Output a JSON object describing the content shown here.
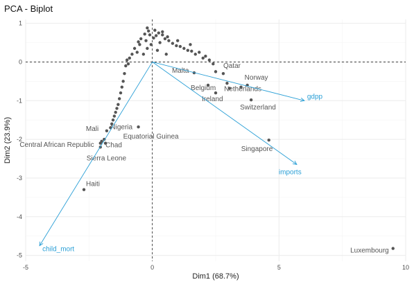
{
  "chart_data": {
    "type": "scatter",
    "title": "PCA - Biplot",
    "xlabel": "Dim1 (68.7%)",
    "ylabel": "Dim2 (23.9%)",
    "xlim": [
      -5,
      10
    ],
    "ylim": [
      -5,
      1
    ],
    "grid": true,
    "x_ticks": [
      {
        "value": -5,
        "label": "-5"
      },
      {
        "value": 0,
        "label": "0"
      },
      {
        "value": 5,
        "label": "5"
      },
      {
        "value": 10,
        "label": "10"
      }
    ],
    "y_ticks": [
      {
        "value": 1,
        "label": "1"
      },
      {
        "value": 0,
        "label": "0"
      },
      {
        "value": -1,
        "label": "-1"
      },
      {
        "value": -2,
        "label": "-2"
      },
      {
        "value": -3,
        "label": "-3"
      },
      {
        "value": -4,
        "label": "-4"
      },
      {
        "value": -5,
        "label": "-5"
      }
    ],
    "labeled_points": [
      {
        "label": "Qatar",
        "x": 2.8,
        "y": -0.3
      },
      {
        "label": "Norway",
        "x": 3.75,
        "y": -0.6
      },
      {
        "label": "Malta",
        "x": 1.65,
        "y": -0.28
      },
      {
        "label": "Netherlands",
        "x": 3.05,
        "y": -0.68
      },
      {
        "label": "Belgium",
        "x": 2.2,
        "y": -0.6
      },
      {
        "label": "Ireland",
        "x": 2.5,
        "y": -0.8
      },
      {
        "label": "Switzerland",
        "x": 3.9,
        "y": -0.98
      },
      {
        "label": "Nigeria",
        "x": -1.65,
        "y": -1.7
      },
      {
        "label": "Equatorial Guinea",
        "x": -0.55,
        "y": -1.68
      },
      {
        "label": "Mali",
        "x": -1.8,
        "y": -1.78
      },
      {
        "label": "Central African Republic",
        "x": -2.0,
        "y": -2.05
      },
      {
        "label": "Chad",
        "x": -1.85,
        "y": -2.1
      },
      {
        "label": "Sierra Leone",
        "x": -2.05,
        "y": -2.2
      },
      {
        "label": "Singapore",
        "x": 4.6,
        "y": -2.02
      },
      {
        "label": "Haiti",
        "x": -2.7,
        "y": -3.3
      },
      {
        "label": "Luxembourg",
        "x": 9.5,
        "y": -4.82
      }
    ],
    "points": [
      [
        -0.2,
        0.88
      ],
      [
        -0.15,
        0.8
      ],
      [
        -0.3,
        0.72
      ],
      [
        -0.1,
        0.7
      ],
      [
        0.1,
        0.82
      ],
      [
        0.25,
        0.75
      ],
      [
        0.4,
        0.7
      ],
      [
        0.05,
        0.62
      ],
      [
        -0.45,
        0.6
      ],
      [
        -0.25,
        0.55
      ],
      [
        0.5,
        0.6
      ],
      [
        0.65,
        0.55
      ],
      [
        0.3,
        0.5
      ],
      [
        -0.5,
        0.45
      ],
      [
        -0.7,
        0.35
      ],
      [
        0.8,
        0.48
      ],
      [
        0.95,
        0.42
      ],
      [
        -0.05,
        0.45
      ],
      [
        1.1,
        0.4
      ],
      [
        1.25,
        0.35
      ],
      [
        -0.6,
        0.25
      ],
      [
        -0.8,
        0.2
      ],
      [
        1.4,
        0.3
      ],
      [
        1.55,
        0.28
      ],
      [
        1.7,
        0.2
      ],
      [
        1.85,
        0.25
      ],
      [
        2.0,
        0.1
      ],
      [
        -0.9,
        0.1
      ],
      [
        -1.0,
        0.05
      ],
      [
        2.1,
        0.15
      ],
      [
        2.25,
        0.05
      ],
      [
        2.4,
        -0.05
      ],
      [
        -0.95,
        -0.05
      ],
      [
        -1.05,
        -0.1
      ],
      [
        -0.2,
        0.35
      ],
      [
        0.2,
        0.3
      ],
      [
        -0.35,
        0.2
      ],
      [
        0.55,
        0.2
      ],
      [
        -1.1,
        -0.3
      ],
      [
        -1.15,
        -0.5
      ],
      [
        -1.2,
        -0.65
      ],
      [
        -1.25,
        -0.8
      ],
      [
        -1.3,
        -0.95
      ],
      [
        -1.35,
        -1.1
      ],
      [
        -1.4,
        -1.2
      ],
      [
        -1.45,
        -1.3
      ],
      [
        -1.5,
        -1.4
      ],
      [
        -1.55,
        -1.5
      ],
      [
        -1.6,
        -1.6
      ],
      [
        -1.9,
        -2.0
      ],
      [
        -2.05,
        -2.1
      ],
      [
        2.5,
        -0.25
      ],
      [
        2.95,
        -0.55
      ],
      [
        3.5,
        -0.65
      ],
      [
        0.4,
        0.78
      ],
      [
        0.6,
        0.65
      ],
      [
        -0.55,
        0.52
      ],
      [
        1.0,
        0.55
      ],
      [
        1.5,
        0.45
      ],
      [
        0.15,
        0.68
      ]
    ],
    "variables": [
      {
        "name": "gdpp",
        "x": 6.0,
        "y": -1.0
      },
      {
        "name": "imports",
        "x": 5.7,
        "y": -2.65
      },
      {
        "name": "child_mort",
        "x": -4.45,
        "y": -4.75
      }
    ]
  }
}
